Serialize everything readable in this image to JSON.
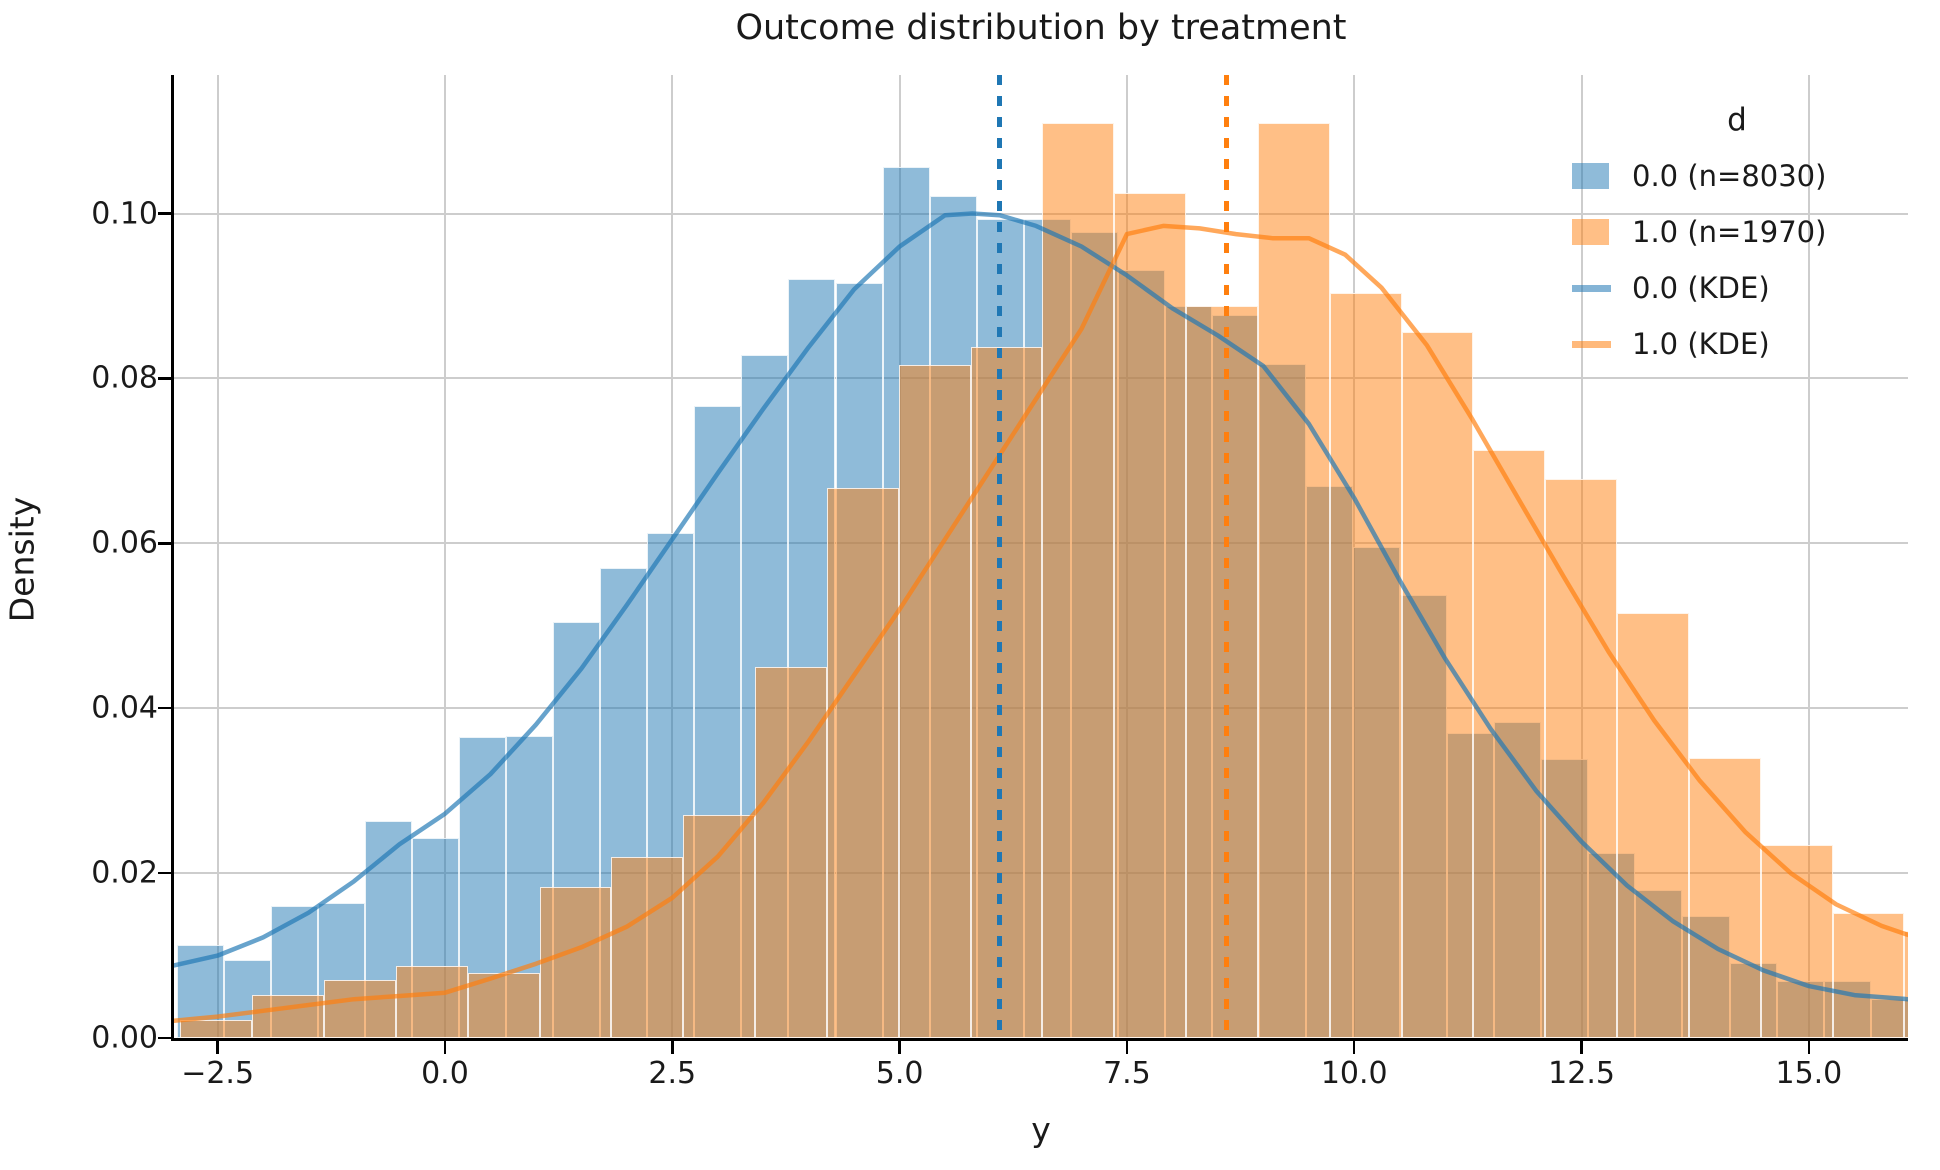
{
  "title": "Outcome distribution by treatment",
  "axes": {
    "xlabel": "y",
    "ylabel": "Density",
    "x_ticks": [
      -2.5,
      0.0,
      2.5,
      5.0,
      7.5,
      10.0,
      12.5,
      15.0
    ],
    "x_tick_labels": [
      "−2.5",
      "0.0",
      "2.5",
      "5.0",
      "7.5",
      "10.0",
      "12.5",
      "15.0"
    ],
    "y_ticks": [
      0.0,
      0.02,
      0.04,
      0.06,
      0.08,
      0.1
    ],
    "y_tick_labels": [
      "0.00",
      "0.02",
      "0.04",
      "0.06",
      "0.08",
      "0.10"
    ],
    "xlim": [
      -2.98,
      16.09
    ],
    "ylim": [
      0,
      0.1168
    ],
    "grid": true
  },
  "legend": {
    "title": "d",
    "entries": [
      {
        "swatch": "patch",
        "color_key": "bar_blue",
        "label": "0.0 (n=8030)"
      },
      {
        "swatch": "patch",
        "color_key": "bar_orange",
        "label": "1.0 (n=1970)"
      },
      {
        "swatch": "line",
        "color_key": "swatch_line_blue",
        "label": "0.0 (KDE)"
      },
      {
        "swatch": "line",
        "color_key": "swatch_line_orange",
        "label": "1.0 (KDE)"
      }
    ],
    "position": "upper right",
    "frame": false
  },
  "colors": {
    "blue": "#1f77b4",
    "orange": "#ff7f0e",
    "bar_blue": "rgba(31,119,180,0.5)",
    "bar_orange": "rgba(255,127,14,0.5)",
    "kde_blue": "rgba(31,119,180,0.68)",
    "kde_orange": "rgba(255,127,14,0.68)",
    "swatch_line_blue": "rgba(31,119,180,0.55)",
    "swatch_line_orange": "rgba(255,127,14,0.55)",
    "vline_blue": "#1f77b4",
    "vline_orange": "#ff7f0e",
    "grid": "#cdcdcd",
    "spine": "#000000",
    "text": "#1a1a1a"
  },
  "chart_data": {
    "type": "histogram+kde",
    "title": "Outcome distribution by treatment",
    "xlabel": "y",
    "ylabel": "Density",
    "xlim": [
      -2.98,
      16.09
    ],
    "ylim": [
      0,
      0.1168
    ],
    "grid": true,
    "legend_position": "upper right",
    "series": [
      {
        "name": "0.0 (n=8030)",
        "kind": "histogram",
        "stat": "density",
        "color_key": "bar_blue",
        "bin_start": -2.95,
        "bin_width": 0.5175,
        "densities": [
          0.0113,
          0.0095,
          0.016,
          0.0164,
          0.0263,
          0.0242,
          0.0365,
          0.0366,
          0.0504,
          0.057,
          0.0613,
          0.0766,
          0.0829,
          0.0921,
          0.0916,
          0.1057,
          0.1021,
          0.0993,
          0.0993,
          0.0978,
          0.0931,
          0.0888,
          0.0877,
          0.0818,
          0.067,
          0.0595,
          0.0537,
          0.037,
          0.0383,
          0.0338,
          0.0224,
          0.018,
          0.0148,
          0.0091,
          0.0069,
          0.0069,
          0.0047
        ]
      },
      {
        "name": "1.0 (n=1970)",
        "kind": "histogram",
        "stat": "density",
        "color_key": "bar_orange",
        "bin_start": -2.91,
        "bin_width": 0.79,
        "densities": [
          0.0022,
          0.0052,
          0.007,
          0.0087,
          0.0079,
          0.0183,
          0.022,
          0.027,
          0.045,
          0.0667,
          0.0816,
          0.0838,
          0.111,
          0.1025,
          0.0888,
          0.111,
          0.0903,
          0.0856,
          0.0713,
          0.0678,
          0.0515,
          0.0339,
          0.0234,
          0.0152,
          0.013
        ]
      },
      {
        "name": "0.0 (KDE)",
        "kind": "kde-line",
        "color_key": "kde_blue",
        "points": [
          [
            -2.98,
            0.0088
          ],
          [
            -2.5,
            0.01
          ],
          [
            -2.0,
            0.0122
          ],
          [
            -1.5,
            0.0152
          ],
          [
            -1.0,
            0.019
          ],
          [
            -0.5,
            0.0235
          ],
          [
            0.0,
            0.0272
          ],
          [
            0.5,
            0.032
          ],
          [
            1.0,
            0.038
          ],
          [
            1.5,
            0.0448
          ],
          [
            2.0,
            0.0525
          ],
          [
            2.5,
            0.0605
          ],
          [
            3.0,
            0.0685
          ],
          [
            3.5,
            0.0763
          ],
          [
            4.0,
            0.0838
          ],
          [
            4.5,
            0.0908
          ],
          [
            5.0,
            0.096
          ],
          [
            5.5,
            0.0998
          ],
          [
            5.8,
            0.1
          ],
          [
            6.1,
            0.0998
          ],
          [
            6.5,
            0.0985
          ],
          [
            7.0,
            0.096
          ],
          [
            7.5,
            0.0925
          ],
          [
            8.0,
            0.0885
          ],
          [
            8.5,
            0.0852
          ],
          [
            9.0,
            0.0815
          ],
          [
            9.5,
            0.0745
          ],
          [
            10.0,
            0.0655
          ],
          [
            10.5,
            0.0555
          ],
          [
            11.0,
            0.046
          ],
          [
            11.5,
            0.0375
          ],
          [
            12.0,
            0.03
          ],
          [
            12.5,
            0.0238
          ],
          [
            13.0,
            0.0185
          ],
          [
            13.5,
            0.0142
          ],
          [
            14.0,
            0.0108
          ],
          [
            14.5,
            0.0082
          ],
          [
            15.0,
            0.0063
          ],
          [
            15.5,
            0.0052
          ],
          [
            16.09,
            0.0047
          ]
        ]
      },
      {
        "name": "1.0 (KDE)",
        "kind": "kde-line",
        "color_key": "kde_orange",
        "points": [
          [
            -2.98,
            0.0021
          ],
          [
            -2.5,
            0.0026
          ],
          [
            -2.0,
            0.0033
          ],
          [
            -1.5,
            0.004
          ],
          [
            -1.0,
            0.0047
          ],
          [
            -0.5,
            0.0051
          ],
          [
            0.0,
            0.0055
          ],
          [
            0.5,
            0.0072
          ],
          [
            1.0,
            0.009
          ],
          [
            1.5,
            0.011
          ],
          [
            2.0,
            0.0135
          ],
          [
            2.5,
            0.017
          ],
          [
            3.0,
            0.022
          ],
          [
            3.5,
            0.0285
          ],
          [
            4.0,
            0.036
          ],
          [
            4.5,
            0.044
          ],
          [
            5.0,
            0.052
          ],
          [
            5.5,
            0.0605
          ],
          [
            6.0,
            0.069
          ],
          [
            6.5,
            0.0775
          ],
          [
            7.0,
            0.086
          ],
          [
            7.5,
            0.0975
          ],
          [
            7.9,
            0.0985
          ],
          [
            8.3,
            0.0982
          ],
          [
            8.7,
            0.0975
          ],
          [
            9.1,
            0.097
          ],
          [
            9.5,
            0.097
          ],
          [
            9.9,
            0.095
          ],
          [
            10.3,
            0.091
          ],
          [
            10.8,
            0.084
          ],
          [
            11.3,
            0.075
          ],
          [
            11.8,
            0.0655
          ],
          [
            12.3,
            0.056
          ],
          [
            12.8,
            0.0468
          ],
          [
            13.3,
            0.0385
          ],
          [
            13.8,
            0.0312
          ],
          [
            14.3,
            0.025
          ],
          [
            14.8,
            0.02
          ],
          [
            15.3,
            0.0162
          ],
          [
            15.8,
            0.0136
          ],
          [
            16.09,
            0.0125
          ]
        ]
      }
    ],
    "vlines": [
      {
        "x": 6.1,
        "color_key": "vline_blue",
        "style": "dotted"
      },
      {
        "x": 8.59,
        "color_key": "vline_orange",
        "style": "dotted"
      }
    ]
  }
}
